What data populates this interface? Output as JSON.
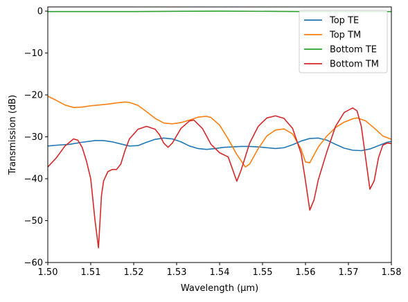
{
  "chart_data": {
    "type": "line",
    "xlabel": "Wavelength (μm)",
    "ylabel": "Transmission (dB)",
    "xlim": [
      1.5,
      1.58
    ],
    "ylim": [
      -60,
      1
    ],
    "x_ticks": [
      "1.50",
      "1.51",
      "1.52",
      "1.53",
      "1.54",
      "1.55",
      "1.56",
      "1.57",
      "1.58"
    ],
    "y_ticks": [
      "0",
      "−10",
      "−20",
      "−30",
      "−40",
      "−50",
      "−60"
    ],
    "legend_position": "top-right",
    "grid": false,
    "series": [
      {
        "name": "Top TE",
        "color": "#1f77b4",
        "points": [
          [
            1.5,
            -32.2
          ],
          [
            1.502,
            -32.0
          ],
          [
            1.505,
            -31.8
          ],
          [
            1.508,
            -31.3
          ],
          [
            1.511,
            -30.9
          ],
          [
            1.513,
            -30.9
          ],
          [
            1.515,
            -31.2
          ],
          [
            1.517,
            -31.7
          ],
          [
            1.519,
            -32.2
          ],
          [
            1.521,
            -32.1
          ],
          [
            1.523,
            -31.3
          ],
          [
            1.525,
            -30.6
          ],
          [
            1.527,
            -30.3
          ],
          [
            1.529,
            -30.5
          ],
          [
            1.531,
            -31.2
          ],
          [
            1.533,
            -32.2
          ],
          [
            1.535,
            -32.8
          ],
          [
            1.537,
            -33.0
          ],
          [
            1.539,
            -32.8
          ],
          [
            1.541,
            -32.5
          ],
          [
            1.543,
            -32.4
          ],
          [
            1.545,
            -32.3
          ],
          [
            1.547,
            -32.3
          ],
          [
            1.549,
            -32.4
          ],
          [
            1.551,
            -32.6
          ],
          [
            1.553,
            -32.8
          ],
          [
            1.555,
            -32.6
          ],
          [
            1.557,
            -31.9
          ],
          [
            1.559,
            -31.0
          ],
          [
            1.561,
            -30.4
          ],
          [
            1.563,
            -30.3
          ],
          [
            1.565,
            -30.8
          ],
          [
            1.567,
            -31.8
          ],
          [
            1.569,
            -32.7
          ],
          [
            1.571,
            -33.2
          ],
          [
            1.573,
            -33.3
          ],
          [
            1.575,
            -32.9
          ],
          [
            1.577,
            -32.1
          ],
          [
            1.579,
            -31.3
          ],
          [
            1.58,
            -31.1
          ]
        ]
      },
      {
        "name": "Top TM",
        "color": "#ff7f0e",
        "points": [
          [
            1.5,
            -20.3
          ],
          [
            1.502,
            -21.3
          ],
          [
            1.504,
            -22.4
          ],
          [
            1.506,
            -23.0
          ],
          [
            1.508,
            -22.9
          ],
          [
            1.51,
            -22.6
          ],
          [
            1.512,
            -22.4
          ],
          [
            1.514,
            -22.2
          ],
          [
            1.516,
            -21.9
          ],
          [
            1.518,
            -21.7
          ],
          [
            1.519,
            -21.8
          ],
          [
            1.521,
            -22.5
          ],
          [
            1.523,
            -24.0
          ],
          [
            1.525,
            -25.6
          ],
          [
            1.527,
            -26.7
          ],
          [
            1.529,
            -26.9
          ],
          [
            1.531,
            -26.6
          ],
          [
            1.533,
            -26.0
          ],
          [
            1.535,
            -25.3
          ],
          [
            1.537,
            -25.1
          ],
          [
            1.538,
            -25.4
          ],
          [
            1.54,
            -27.2
          ],
          [
            1.542,
            -30.5
          ],
          [
            1.544,
            -34.2
          ],
          [
            1.546,
            -37.2
          ],
          [
            1.547,
            -36.5
          ],
          [
            1.549,
            -32.8
          ],
          [
            1.551,
            -29.8
          ],
          [
            1.553,
            -28.4
          ],
          [
            1.555,
            -28.1
          ],
          [
            1.557,
            -29.3
          ],
          [
            1.559,
            -33.0
          ],
          [
            1.56,
            -36.0
          ],
          [
            1.561,
            -36.2
          ],
          [
            1.563,
            -32.4
          ],
          [
            1.565,
            -29.8
          ],
          [
            1.567,
            -27.8
          ],
          [
            1.569,
            -26.5
          ],
          [
            1.571,
            -25.7
          ],
          [
            1.572,
            -25.5
          ],
          [
            1.574,
            -26.2
          ],
          [
            1.576,
            -27.9
          ],
          [
            1.578,
            -29.8
          ],
          [
            1.58,
            -30.6
          ]
        ]
      },
      {
        "name": "Bottom TE",
        "color": "#2ca02c",
        "points": [
          [
            1.5,
            -0.1
          ],
          [
            1.52,
            -0.1
          ],
          [
            1.54,
            0.0
          ],
          [
            1.56,
            -0.1
          ],
          [
            1.58,
            -0.1
          ]
        ]
      },
      {
        "name": "Bottom TM",
        "color": "#d62728",
        "points": [
          [
            1.5,
            -37.2
          ],
          [
            1.502,
            -35.0
          ],
          [
            1.504,
            -32.2
          ],
          [
            1.506,
            -30.5
          ],
          [
            1.507,
            -30.8
          ],
          [
            1.508,
            -32.5
          ],
          [
            1.509,
            -35.8
          ],
          [
            1.51,
            -40.0
          ],
          [
            1.511,
            -50.0
          ],
          [
            1.5118,
            -56.5
          ],
          [
            1.5125,
            -44.0
          ],
          [
            1.513,
            -40.5
          ],
          [
            1.514,
            -38.3
          ],
          [
            1.515,
            -37.8
          ],
          [
            1.516,
            -37.8
          ],
          [
            1.517,
            -36.5
          ],
          [
            1.518,
            -33.2
          ],
          [
            1.519,
            -30.5
          ],
          [
            1.521,
            -28.2
          ],
          [
            1.523,
            -27.5
          ],
          [
            1.525,
            -28.2
          ],
          [
            1.526,
            -29.5
          ],
          [
            1.527,
            -31.5
          ],
          [
            1.528,
            -32.5
          ],
          [
            1.529,
            -31.5
          ],
          [
            1.531,
            -28.0
          ],
          [
            1.533,
            -26.2
          ],
          [
            1.534,
            -26.0
          ],
          [
            1.536,
            -28.0
          ],
          [
            1.538,
            -31.8
          ],
          [
            1.54,
            -33.8
          ],
          [
            1.542,
            -34.8
          ],
          [
            1.544,
            -40.6
          ],
          [
            1.545,
            -38.0
          ],
          [
            1.547,
            -31.5
          ],
          [
            1.549,
            -27.5
          ],
          [
            1.551,
            -25.5
          ],
          [
            1.553,
            -25.0
          ],
          [
            1.555,
            -25.6
          ],
          [
            1.557,
            -28.0
          ],
          [
            1.559,
            -34.0
          ],
          [
            1.56,
            -40.5
          ],
          [
            1.561,
            -47.5
          ],
          [
            1.562,
            -45.0
          ],
          [
            1.563,
            -40.2
          ],
          [
            1.565,
            -33.5
          ],
          [
            1.567,
            -27.5
          ],
          [
            1.569,
            -24.2
          ],
          [
            1.571,
            -23.1
          ],
          [
            1.572,
            -23.8
          ],
          [
            1.573,
            -27.5
          ],
          [
            1.574,
            -35.0
          ],
          [
            1.575,
            -42.5
          ],
          [
            1.576,
            -40.5
          ],
          [
            1.577,
            -35.0
          ],
          [
            1.578,
            -32.0
          ],
          [
            1.579,
            -31.5
          ],
          [
            1.58,
            -31.6
          ]
        ]
      }
    ]
  }
}
